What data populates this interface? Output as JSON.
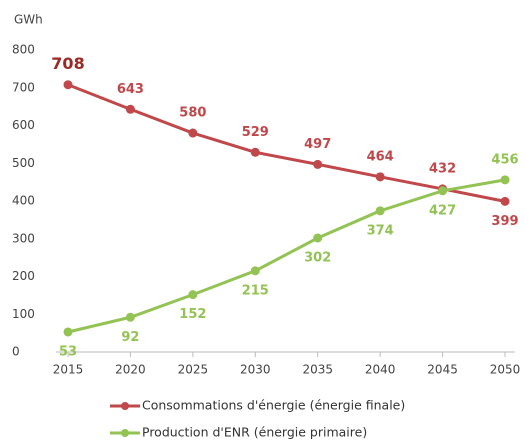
{
  "chart_data": {
    "type": "line",
    "y_label": "GWh",
    "x": [
      2015,
      2020,
      2025,
      2030,
      2035,
      2040,
      2045,
      2050
    ],
    "xlim": [
      2015,
      2050
    ],
    "xticks": [
      2015,
      2020,
      2025,
      2030,
      2035,
      2040,
      2045,
      2050
    ],
    "ylim": [
      0,
      800
    ],
    "yticks": [
      0,
      100,
      200,
      300,
      400,
      500,
      600,
      700,
      800
    ],
    "series": [
      {
        "name": "Consommations d'énergie (énergie finale)",
        "color": "#c0474a",
        "values": [
          708,
          643,
          580,
          529,
          497,
          464,
          432,
          399
        ]
      },
      {
        "name": "Production d'ENR (énergie primaire)",
        "color": "#92c353",
        "values": [
          53,
          92,
          152,
          215,
          302,
          374,
          427,
          456
        ]
      }
    ]
  }
}
